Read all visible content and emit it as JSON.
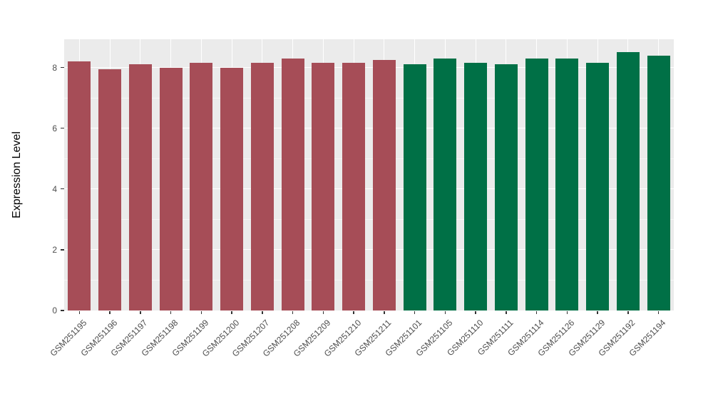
{
  "chart_data": {
    "type": "bar",
    "title": "",
    "xlabel": "",
    "ylabel": "Expression Level",
    "ylim": [
      0,
      8.93
    ],
    "yticks": [
      0,
      2,
      4,
      6,
      8
    ],
    "grid": true,
    "legend_position": "none",
    "panel_background": "#EBEBEB",
    "gridline_color": "#ffffff",
    "categories": [
      "GSM251195",
      "GSM251196",
      "GSM251197",
      "GSM251198",
      "GSM251199",
      "GSM251200",
      "GSM251207",
      "GSM251208",
      "GSM251209",
      "GSM251210",
      "GSM251211",
      "GSM251101",
      "GSM251105",
      "GSM251110",
      "GSM251111",
      "GSM251114",
      "GSM251126",
      "GSM251129",
      "GSM251192",
      "GSM251194"
    ],
    "values": [
      8.2,
      7.95,
      8.1,
      8.0,
      8.15,
      8.0,
      8.15,
      8.3,
      8.15,
      8.15,
      8.25,
      8.1,
      8.3,
      8.15,
      8.1,
      8.3,
      8.3,
      8.15,
      8.5,
      8.4
    ],
    "groups": [
      {
        "name": "red-group",
        "color": "#A64D57",
        "count": 11
      },
      {
        "name": "green-group",
        "color": "#007046",
        "count": 9
      }
    ],
    "bar_colors": [
      "#A64D57",
      "#A64D57",
      "#A64D57",
      "#A64D57",
      "#A64D57",
      "#A64D57",
      "#A64D57",
      "#A64D57",
      "#A64D57",
      "#A64D57",
      "#A64D57",
      "#007046",
      "#007046",
      "#007046",
      "#007046",
      "#007046",
      "#007046",
      "#007046",
      "#007046",
      "#007046"
    ]
  }
}
